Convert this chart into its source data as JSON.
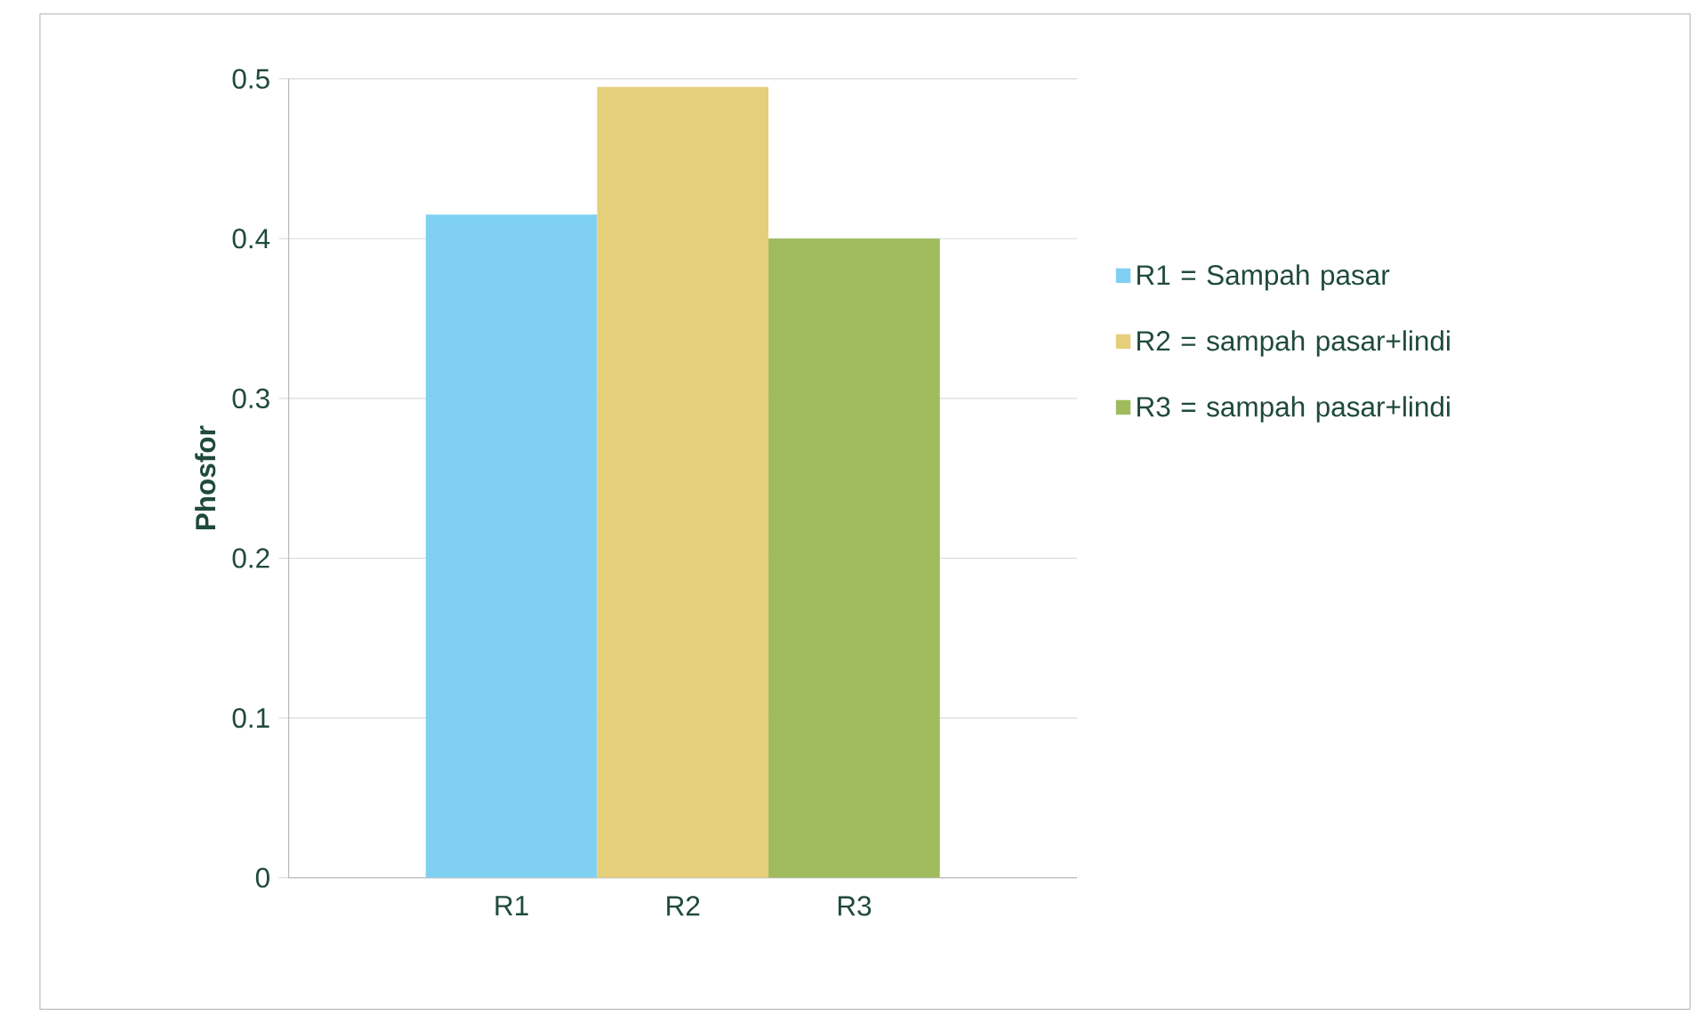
{
  "chart_data": {
    "type": "bar",
    "ylabel": "Phosfor",
    "categories": [
      "R1",
      "R2",
      "R3"
    ],
    "series": [
      {
        "name": "R1 = Sampah pasar",
        "color": "#7fd0f2",
        "values": [
          0.415,
          null,
          null
        ]
      },
      {
        "name": "R2 = sampah pasar+lindi",
        "color": "#e6cf7a",
        "values": [
          null,
          0.495,
          null
        ]
      },
      {
        "name": "R3 = sampah pasar+lindi",
        "color": "#9fbb5c",
        "values": [
          null,
          null,
          0.4
        ]
      }
    ],
    "ylim": [
      0,
      0.5
    ],
    "yticks": [
      0,
      0.1,
      0.2,
      0.3,
      0.4,
      0.5
    ],
    "grid": "y",
    "legend": "right"
  }
}
